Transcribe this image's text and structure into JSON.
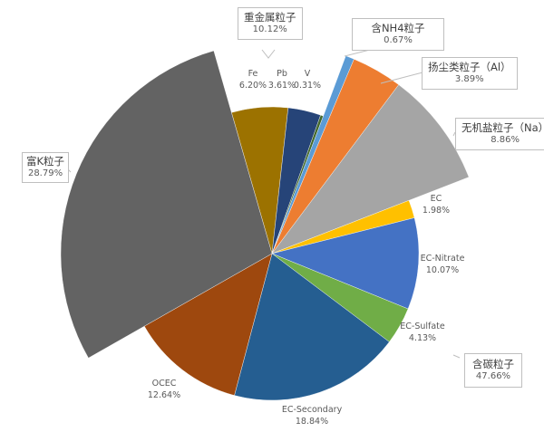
{
  "chart_data": {
    "type": "pie",
    "title": "",
    "slices": [
      {
        "label": "Fe",
        "value": 6.2,
        "display": "6.20%",
        "color": "#9c7200",
        "group": "heavy_metal"
      },
      {
        "label": "Pb",
        "value": 3.61,
        "display": "3.61%",
        "color": "#264478",
        "group": "heavy_metal"
      },
      {
        "label": "V",
        "value": 0.31,
        "display": "0.31%",
        "color": "#43682b",
        "group": "heavy_metal"
      },
      {
        "label": "含NH4粒子",
        "value": 0.67,
        "display": "0.67%",
        "color": "#5b9bd5",
        "group": "nh4",
        "exploded": true
      },
      {
        "label": "扬尘类粒子（Al）",
        "value": 3.89,
        "display": "3.89%",
        "color": "#ed7d31",
        "group": "dust",
        "exploded": true
      },
      {
        "label": "无机盐粒子（Na）",
        "value": 8.86,
        "display": "8.86%",
        "color": "#a5a5a5",
        "group": "salt",
        "exploded": true
      },
      {
        "label": "EC",
        "value": 1.98,
        "display": "1.98%",
        "color": "#ffc000",
        "group": "carbon"
      },
      {
        "label": "EC-Nitrate",
        "value": 10.07,
        "display": "10.07%",
        "color": "#4472c4",
        "group": "carbon"
      },
      {
        "label": "EC-Sulfate",
        "value": 4.13,
        "display": "4.13%",
        "color": "#70ad47",
        "group": "carbon"
      },
      {
        "label": "EC-Secondary",
        "value": 18.84,
        "display": "18.84%",
        "color": "#255e91",
        "group": "carbon"
      },
      {
        "label": "OCEC",
        "value": 12.64,
        "display": "12.64%",
        "color": "#9e480e",
        "group": "carbon"
      },
      {
        "label": "富K粒子",
        "value": 28.79,
        "display": "28.79%",
        "color": "#636363",
        "group": "k",
        "exploded": true
      }
    ],
    "groups": [
      {
        "name": "重金属粒子",
        "value": "10.12%"
      },
      {
        "name": "含NH4粒子",
        "value": "0.67%"
      },
      {
        "name": "扬尘类粒子（Al）",
        "value": "3.89%"
      },
      {
        "name": "无机盐粒子（Na）",
        "value": "8.86%"
      },
      {
        "name": "富K粒子",
        "value": "28.79%"
      },
      {
        "name": "含碳粒子",
        "value": "47.66%"
      }
    ]
  }
}
